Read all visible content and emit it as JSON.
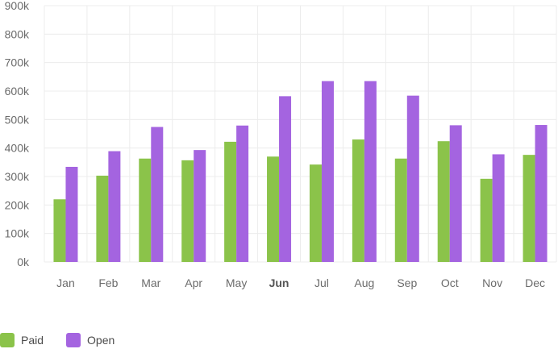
{
  "chart_data": {
    "type": "bar",
    "categories": [
      "Jan",
      "Feb",
      "Mar",
      "Apr",
      "May",
      "Jun",
      "Jul",
      "Aug",
      "Sep",
      "Oct",
      "Nov",
      "Dec"
    ],
    "highlighted_category": "Jun",
    "series": [
      {
        "name": "Paid",
        "color": "#8bc34a",
        "values": [
          220000,
          303000,
          363000,
          357000,
          422000,
          370000,
          342000,
          430000,
          363000,
          424000,
          292000,
          376000
        ]
      },
      {
        "name": "Open",
        "color": "#a464e0",
        "values": [
          334000,
          389000,
          474000,
          393000,
          479000,
          582000,
          635000,
          635000,
          584000,
          480000,
          378000,
          481000
        ]
      }
    ],
    "y_ticks": [
      "0k",
      "100k",
      "200k",
      "300k",
      "400k",
      "500k",
      "600k",
      "700k",
      "800k",
      "900k"
    ],
    "ylim": [
      0,
      900000
    ],
    "grid": true,
    "legend_position": "bottom-left"
  },
  "legend": {
    "paid_label": "Paid",
    "open_label": "Open"
  }
}
